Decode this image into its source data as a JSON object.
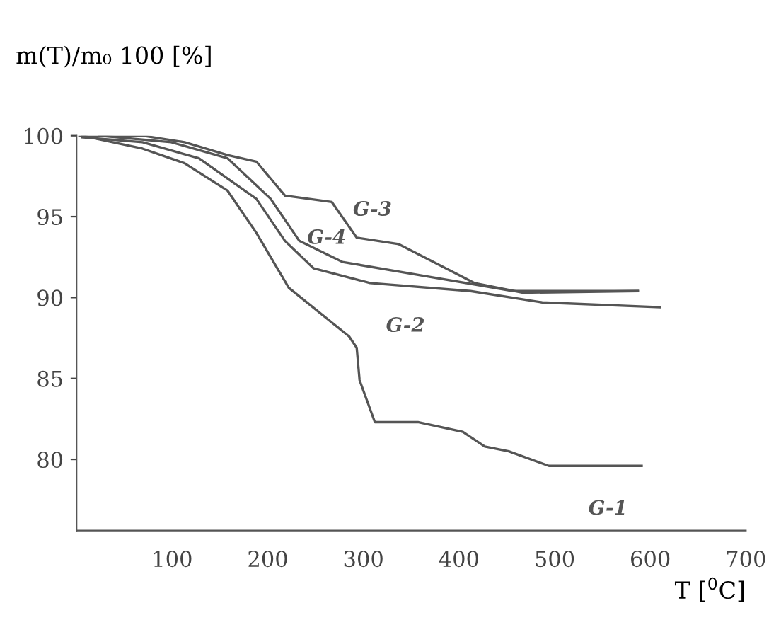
{
  "chart_data": {
    "type": "line",
    "xlabel": "T [$^{0}$C]",
    "ylabel": "m(T)/m₀ 100 [%]",
    "xlim": [
      0,
      700
    ],
    "xticks": [
      100,
      200,
      300,
      400,
      500,
      600,
      700
    ],
    "ylim": [
      75.6,
      100
    ],
    "yticks": [
      80,
      85,
      90,
      95,
      100
    ],
    "grid": false,
    "legend": false,
    "marker": "none",
    "line_style": "solid",
    "series": [
      {
        "name": "G-1",
        "color": "#555555",
        "x": [
          6,
          69,
          113,
          158,
          188,
          222,
          285,
          293,
          296,
          312,
          357,
          404,
          427,
          452,
          494,
          591
        ],
        "values": [
          100,
          99.2,
          98.3,
          96.6,
          94,
          90.6,
          87.6,
          86.9,
          84.9,
          82.3,
          82.3,
          81.7,
          80.8,
          80.5,
          79.6,
          79.6
        ]
      },
      {
        "name": "G-2",
        "color": "#555555",
        "x": [
          6,
          69,
          128,
          188,
          218,
          248,
          307,
          412,
          487,
          610
        ],
        "values": [
          99.9,
          99.6,
          98.6,
          96.1,
          93.5,
          91.8,
          90.9,
          90.4,
          89.7,
          89.4
        ]
      },
      {
        "name": "G-3",
        "color": "#555555",
        "x": [
          3,
          69,
          113,
          158,
          188,
          218,
          267,
          293,
          337,
          416,
          467,
          587
        ],
        "values": [
          100,
          100,
          99.6,
          98.8,
          98.4,
          96.3,
          95.9,
          93.7,
          93.3,
          90.9,
          90.3,
          90.4
        ]
      },
      {
        "name": "G-4",
        "color": "#555555",
        "x": [
          24,
          99,
          158,
          203,
          233,
          278,
          367,
          457,
          587
        ],
        "values": [
          100,
          99.6,
          98.6,
          96.1,
          93.5,
          92.2,
          91.3,
          90.4,
          90.4
        ]
      }
    ]
  }
}
